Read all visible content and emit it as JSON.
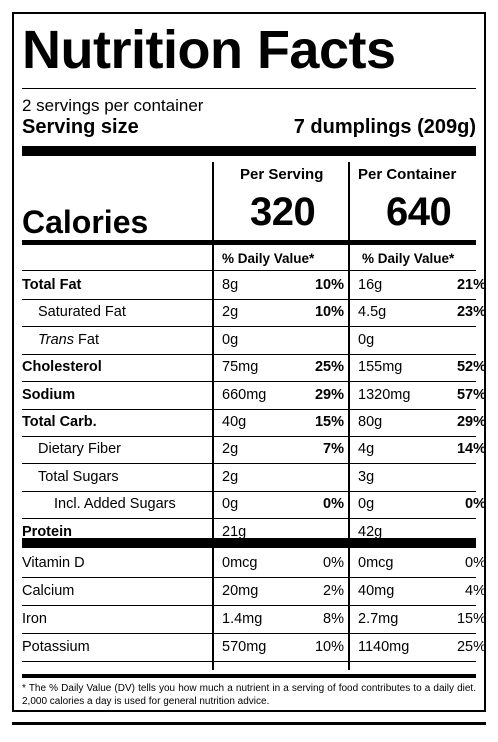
{
  "title": "Nutrition Facts",
  "servings_per_container": "2 servings per container",
  "serving_size_label": "Serving size",
  "serving_size_value": "7 dumplings (209g)",
  "calories_label": "Calories",
  "per_serving_label": "Per Serving",
  "per_container_label": "Per Container",
  "calories_per_serving": "320",
  "calories_per_container": "640",
  "dv_header": "% Daily Value*",
  "nutrients": [
    {
      "name": "Total Fat",
      "bold": true,
      "indent": 0,
      "serv_amt": "8g",
      "serv_pct": "10%",
      "cont_amt": "16g",
      "cont_pct": "21%"
    },
    {
      "name": "Saturated Fat",
      "bold": false,
      "indent": 1,
      "serv_amt": "2g",
      "serv_pct": "10%",
      "cont_amt": "4.5g",
      "cont_pct": "23%"
    },
    {
      "name_italic": "Trans",
      "name": " Fat",
      "bold": false,
      "indent": 1,
      "serv_amt": "0g",
      "serv_pct": "",
      "cont_amt": "0g",
      "cont_pct": ""
    },
    {
      "name": "Cholesterol",
      "bold": true,
      "indent": 0,
      "serv_amt": "75mg",
      "serv_pct": "25%",
      "cont_amt": "155mg",
      "cont_pct": "52%"
    },
    {
      "name": "Sodium",
      "bold": true,
      "indent": 0,
      "serv_amt": "660mg",
      "serv_pct": "29%",
      "cont_amt": "1320mg",
      "cont_pct": "57%"
    },
    {
      "name": "Total Carb.",
      "bold": true,
      "indent": 0,
      "serv_amt": "40g",
      "serv_pct": "15%",
      "cont_amt": "80g",
      "cont_pct": "29%"
    },
    {
      "name": "Dietary Fiber",
      "bold": false,
      "indent": 1,
      "serv_amt": "2g",
      "serv_pct": "7%",
      "cont_amt": "4g",
      "cont_pct": "14%"
    },
    {
      "name": "Total Sugars",
      "bold": false,
      "indent": 1,
      "serv_amt": "2g",
      "serv_pct": "",
      "cont_amt": "3g",
      "cont_pct": ""
    },
    {
      "name": "Incl. Added Sugars",
      "bold": false,
      "indent": 2,
      "serv_amt": "0g",
      "serv_pct": "0%",
      "cont_amt": "0g",
      "cont_pct": "0%"
    },
    {
      "name": "Protein",
      "bold": true,
      "indent": 0,
      "serv_amt": "21g",
      "serv_pct": "",
      "cont_amt": "42g",
      "cont_pct": ""
    }
  ],
  "vitamins": [
    {
      "name": "Vitamin D",
      "serv_amt": "0mcg",
      "serv_pct": "0%",
      "cont_amt": "0mcg",
      "cont_pct": "0%"
    },
    {
      "name": "Calcium",
      "serv_amt": "20mg",
      "serv_pct": "2%",
      "cont_amt": "40mg",
      "cont_pct": "4%"
    },
    {
      "name": "Iron",
      "serv_amt": "1.4mg",
      "serv_pct": "8%",
      "cont_amt": "2.7mg",
      "cont_pct": "15%"
    },
    {
      "name": "Potassium",
      "serv_amt": "570mg",
      "serv_pct": "10%",
      "cont_amt": "1140mg",
      "cont_pct": "25%"
    }
  ],
  "footnote": "* The % Daily Value (DV) tells you how much a nutrient in a serving of food contributes to a daily diet. 2,000 calories a day is used for general nutrition advice."
}
